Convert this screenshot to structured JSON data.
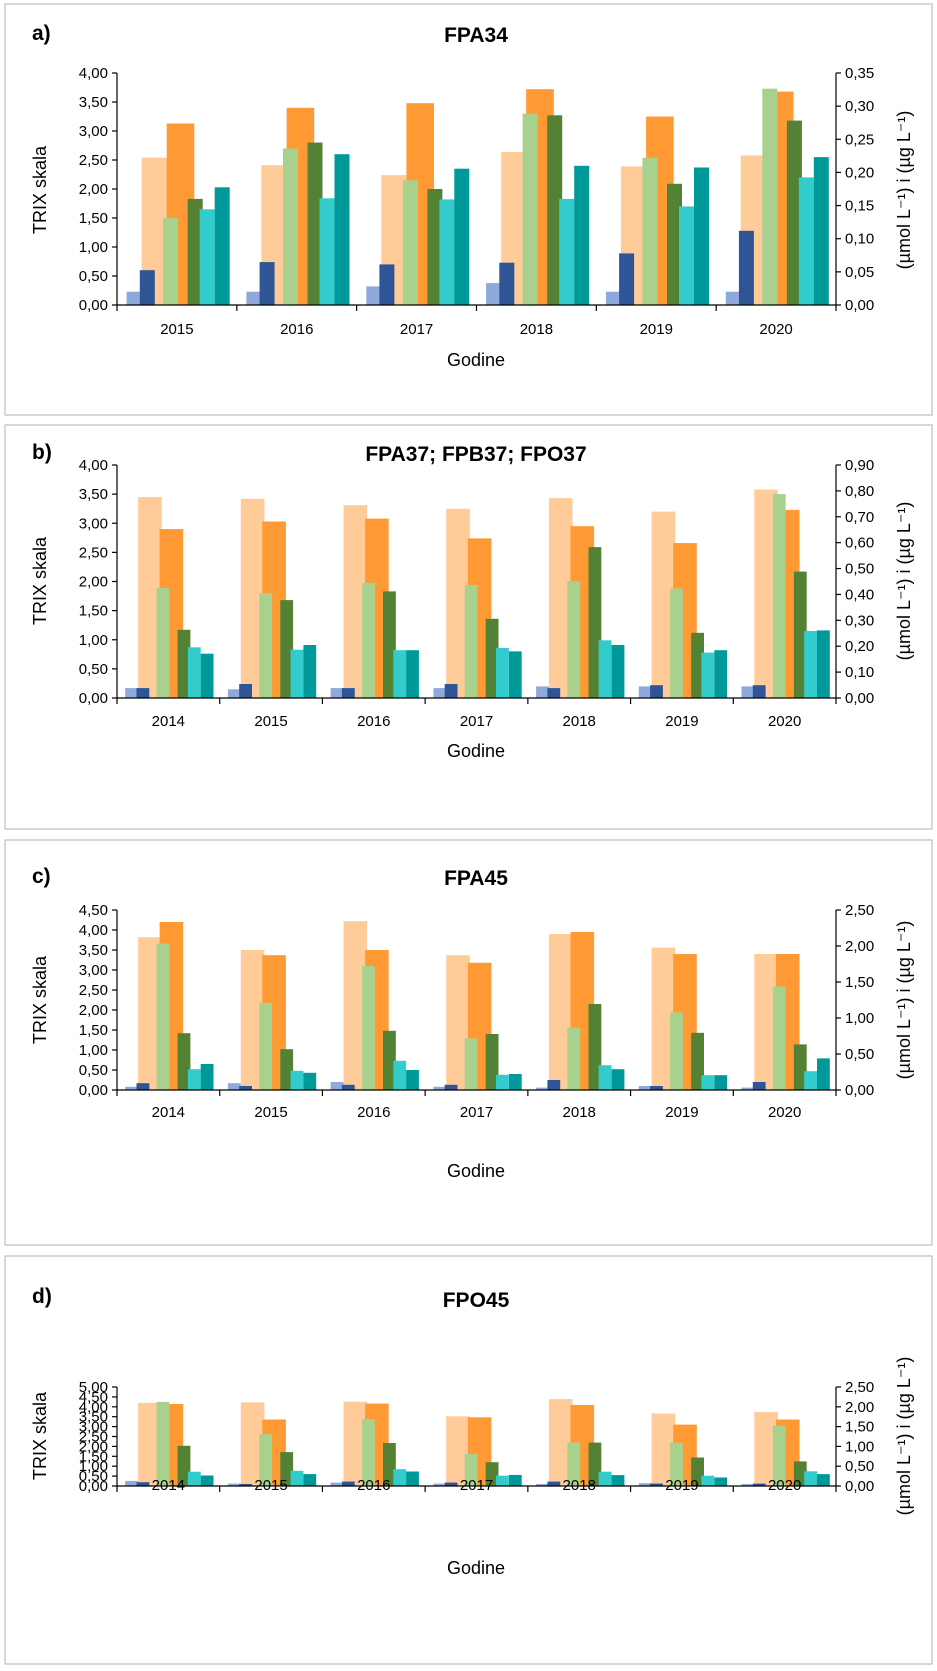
{
  "colors": {
    "series": [
      "#8EA9DB",
      "#2F5597",
      "#FFCC99",
      "#A9D18E",
      "#FF9933",
      "#548235",
      "#33CCCC",
      "#009999"
    ]
  },
  "chart_data": [
    {
      "type": "bar",
      "panel": "a)",
      "title": "FPA34",
      "xlabel": "Godine",
      "ylabel_left": "TRIX skala",
      "ylabel_right": "(µmol L⁻¹) i (µg L⁻¹)",
      "ylim_left": [
        0,
        4
      ],
      "ylim_right": [
        0,
        0.35
      ],
      "yticks_left": [
        "0,00",
        "0,50",
        "1,00",
        "1,50",
        "2,00",
        "2,50",
        "3,00",
        "3,50",
        "4,00"
      ],
      "yticks_right": [
        "0,00",
        "0,05",
        "0,10",
        "0,15",
        "0,20",
        "0,25",
        "0,30",
        "0,35"
      ],
      "grid": false,
      "categories": [
        "2015",
        "2016",
        "2017",
        "2018",
        "2019",
        "2020"
      ],
      "series": [
        {
          "axis": "right",
          "values": [
            0.02,
            0.02,
            0.028,
            0.033,
            0.02,
            0.02
          ]
        },
        {
          "axis": "left",
          "values": [
            0.6,
            0.74,
            0.7,
            0.73,
            0.89,
            1.28
          ]
        },
        {
          "axis": "left",
          "values": [
            2.54,
            2.41,
            2.24,
            2.64,
            2.39,
            2.58
          ]
        },
        {
          "axis": "left",
          "values": [
            1.5,
            2.7,
            2.15,
            3.3,
            2.54,
            3.73
          ]
        },
        {
          "axis": "left",
          "values": [
            3.13,
            3.4,
            3.48,
            3.72,
            3.25,
            3.68
          ]
        },
        {
          "axis": "left",
          "values": [
            1.83,
            2.8,
            2.0,
            3.27,
            2.09,
            3.18
          ]
        },
        {
          "axis": "left",
          "values": [
            1.65,
            1.84,
            1.82,
            1.83,
            1.7,
            2.2
          ]
        },
        {
          "axis": "left",
          "values": [
            2.03,
            2.6,
            2.35,
            2.4,
            2.37,
            2.55
          ]
        }
      ]
    },
    {
      "type": "bar",
      "panel": "b)",
      "title": "FPA37; FPB37; FPO37",
      "xlabel": "Godine",
      "ylabel_left": "TRIX skala",
      "ylabel_right": "(µmol L⁻¹) i (µg L⁻¹)",
      "ylim_left": [
        0,
        4
      ],
      "ylim_right": [
        0,
        0.9
      ],
      "yticks_left": [
        "0,00",
        "0,50",
        "1,00",
        "1,50",
        "2,00",
        "2,50",
        "3,00",
        "3,50",
        "4,00"
      ],
      "yticks_right": [
        "0,00",
        "0,10",
        "0,20",
        "0,30",
        "0,40",
        "0,50",
        "0,60",
        "0,70",
        "0,80",
        "0,90"
      ],
      "grid": false,
      "categories": [
        "2014",
        "2015",
        "2016",
        "2017",
        "2018",
        "2019",
        "2020"
      ],
      "series": [
        {
          "axis": "left",
          "values": [
            0.17,
            0.15,
            0.17,
            0.17,
            0.2,
            0.2,
            0.2
          ]
        },
        {
          "axis": "left",
          "values": [
            0.17,
            0.24,
            0.17,
            0.24,
            0.17,
            0.22,
            0.22
          ]
        },
        {
          "axis": "left",
          "values": [
            3.45,
            3.42,
            3.31,
            3.25,
            3.43,
            3.2,
            3.58
          ]
        },
        {
          "axis": "left",
          "values": [
            1.89,
            1.8,
            1.98,
            1.94,
            2.01,
            1.88,
            3.5
          ]
        },
        {
          "axis": "left",
          "values": [
            2.9,
            3.03,
            3.08,
            2.74,
            2.95,
            2.66,
            3.23
          ]
        },
        {
          "axis": "left",
          "values": [
            1.17,
            1.68,
            1.83,
            1.36,
            2.59,
            1.12,
            2.17
          ]
        },
        {
          "axis": "left",
          "values": [
            0.87,
            0.83,
            0.82,
            0.86,
            0.99,
            0.78,
            1.15
          ]
        },
        {
          "axis": "left",
          "values": [
            0.76,
            0.91,
            0.82,
            0.8,
            0.91,
            0.82,
            1.16
          ]
        }
      ]
    },
    {
      "type": "bar",
      "panel": "c)",
      "title": "FPA45",
      "xlabel": "Godine",
      "ylabel_left": "TRIX skala",
      "ylabel_right": "(µmol L⁻¹) i (µg L⁻¹)",
      "ylim_left": [
        0,
        4.5
      ],
      "ylim_right": [
        0,
        2.5
      ],
      "yticks_left": [
        "0,00",
        "0,50",
        "1,00",
        "1,50",
        "2,00",
        "2,50",
        "3,00",
        "3,50",
        "4,00",
        "4,50"
      ],
      "yticks_right": [
        "0,00",
        "0,50",
        "1,00",
        "1,50",
        "2,00",
        "2,50"
      ],
      "grid": false,
      "categories": [
        "2014",
        "2015",
        "2016",
        "2017",
        "2018",
        "2019",
        "2020"
      ],
      "series": [
        {
          "axis": "left",
          "values": [
            0.08,
            0.17,
            0.2,
            0.08,
            0.06,
            0.1,
            0.06
          ]
        },
        {
          "axis": "left",
          "values": [
            0.17,
            0.1,
            0.13,
            0.13,
            0.25,
            0.1,
            0.2
          ]
        },
        {
          "axis": "left",
          "values": [
            3.82,
            3.5,
            4.22,
            3.37,
            3.9,
            3.56,
            3.4
          ]
        },
        {
          "axis": "left",
          "values": [
            3.66,
            2.18,
            3.1,
            1.29,
            1.56,
            1.94,
            2.59
          ]
        },
        {
          "axis": "left",
          "values": [
            4.2,
            3.37,
            3.5,
            3.18,
            3.95,
            3.4,
            3.4
          ]
        },
        {
          "axis": "left",
          "values": [
            1.42,
            1.02,
            1.48,
            1.4,
            2.15,
            1.43,
            1.14
          ]
        },
        {
          "axis": "left",
          "values": [
            0.52,
            0.48,
            0.73,
            0.38,
            0.62,
            0.37,
            0.47
          ]
        },
        {
          "axis": "left",
          "values": [
            0.65,
            0.43,
            0.5,
            0.4,
            0.52,
            0.37,
            0.79
          ]
        }
      ]
    },
    {
      "type": "bar",
      "panel": "d)",
      "title": "FPO45",
      "xlabel": "Godine",
      "ylabel_left": "TRIX skala",
      "ylabel_right": "(µmol L⁻¹) i (µg L⁻¹)",
      "ylim_left": [
        0,
        5
      ],
      "ylim_right": [
        0,
        2.5
      ],
      "yticks_left": [
        "0,00",
        "0,50",
        "1,00",
        "1,50",
        "2,00",
        "2,50",
        "3,00",
        "3,50",
        "4,00",
        "4,50",
        "5,00"
      ],
      "yticks_right": [
        "0,00",
        "0,50",
        "1,00",
        "1,50",
        "2,00",
        "2,50"
      ],
      "grid": false,
      "categories": [
        "2014",
        "2015",
        "2016",
        "2017",
        "2018",
        "2019",
        "2020"
      ],
      "series": [
        {
          "axis": "left",
          "values": [
            0.26,
            0.12,
            0.17,
            0.12,
            0.1,
            0.14,
            0.1
          ]
        },
        {
          "axis": "left",
          "values": [
            0.19,
            0.1,
            0.22,
            0.17,
            0.22,
            0.12,
            0.12
          ]
        },
        {
          "axis": "left",
          "values": [
            4.2,
            4.22,
            4.26,
            3.52,
            4.39,
            3.66,
            3.74
          ]
        },
        {
          "axis": "left",
          "values": [
            4.25,
            2.62,
            3.38,
            1.62,
            2.2,
            2.19,
            3.05
          ]
        },
        {
          "axis": "left",
          "values": [
            4.14,
            3.36,
            4.16,
            3.47,
            4.09,
            3.1,
            3.36
          ]
        },
        {
          "axis": "left",
          "values": [
            2.03,
            1.71,
            2.17,
            1.2,
            2.19,
            1.44,
            1.24
          ]
        },
        {
          "axis": "left",
          "values": [
            0.72,
            0.77,
            0.85,
            0.52,
            0.72,
            0.52,
            0.74
          ]
        },
        {
          "axis": "left",
          "values": [
            0.53,
            0.6,
            0.73,
            0.56,
            0.55,
            0.43,
            0.6
          ]
        }
      ]
    }
  ]
}
